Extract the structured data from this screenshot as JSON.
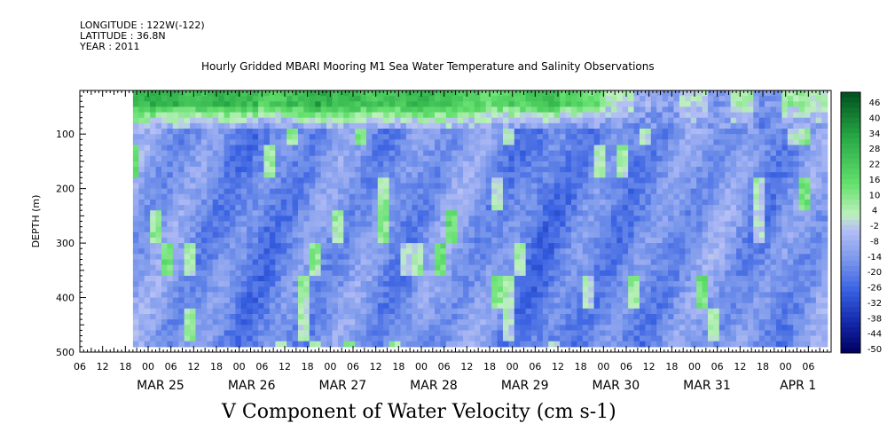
{
  "header": {
    "longitude": "LONGITUDE : 122W(-122)",
    "latitude": "LATITUDE : 36.8N",
    "year": "YEAR : 2011"
  },
  "chart_data": {
    "type": "heatmap",
    "title": "Hourly Gridded MBARI Mooring M1 Sea Water Temperature and Salinity Observations",
    "units_label": "V Component of Water Velocity (cm s-1)",
    "ylabel": "DEPTH (m)",
    "ylim": [
      500,
      20
    ],
    "yticks": [
      100,
      200,
      300,
      400,
      500
    ],
    "x_hour_ticks": [
      "06",
      "12",
      "18",
      "00",
      "06",
      "12",
      "18",
      "00",
      "06",
      "12",
      "18",
      "00",
      "06",
      "12",
      "18",
      "00",
      "06",
      "12",
      "18",
      "00",
      "06",
      "12",
      "18",
      "00",
      "06",
      "12",
      "18",
      "00",
      "06",
      "12",
      "18",
      "00",
      "06"
    ],
    "x_date_labels": [
      "MAR 25",
      "MAR 26",
      "MAR 27",
      "MAR 28",
      "MAR 29",
      "MAR 30",
      "MAR 31",
      "APR 1"
    ],
    "colorbar_labels": [
      "46",
      "40",
      "34",
      "28",
      "22",
      "16",
      "10",
      "4",
      "-2",
      "-8",
      "-14",
      "-20",
      "-26",
      "-32",
      "-38",
      "-44",
      "-50"
    ],
    "colorbar_range": [
      -50,
      52
    ],
    "colors": {
      "strong_positive": "#2ea84a",
      "positive": "#66dd66",
      "neutral": "#b3bdf5",
      "negative": "#3a6ae0",
      "strong_negative": "#000060"
    },
    "data_start_hour": 14,
    "surface_band": {
      "description_range_m": [
        20,
        80
      ],
      "values": [
        30,
        28,
        26,
        30,
        28,
        22,
        26,
        32,
        28,
        24,
        26,
        30,
        26,
        22,
        18,
        22,
        26,
        20,
        14,
        4,
        -8,
        -10,
        2,
        -12,
        6,
        -14,
        8,
        4,
        10
      ]
    },
    "column_profile_hours": [
      14,
      24,
      36,
      48,
      60,
      72,
      84,
      96,
      108,
      120,
      132,
      144,
      156,
      168,
      180,
      192,
      204
    ],
    "column_profile_mean": [
      -10,
      -12,
      -16,
      -20,
      -14,
      -12,
      -18,
      -10,
      -14,
      -22,
      -16,
      -18,
      -14,
      -10,
      -18,
      -12,
      -6
    ]
  }
}
